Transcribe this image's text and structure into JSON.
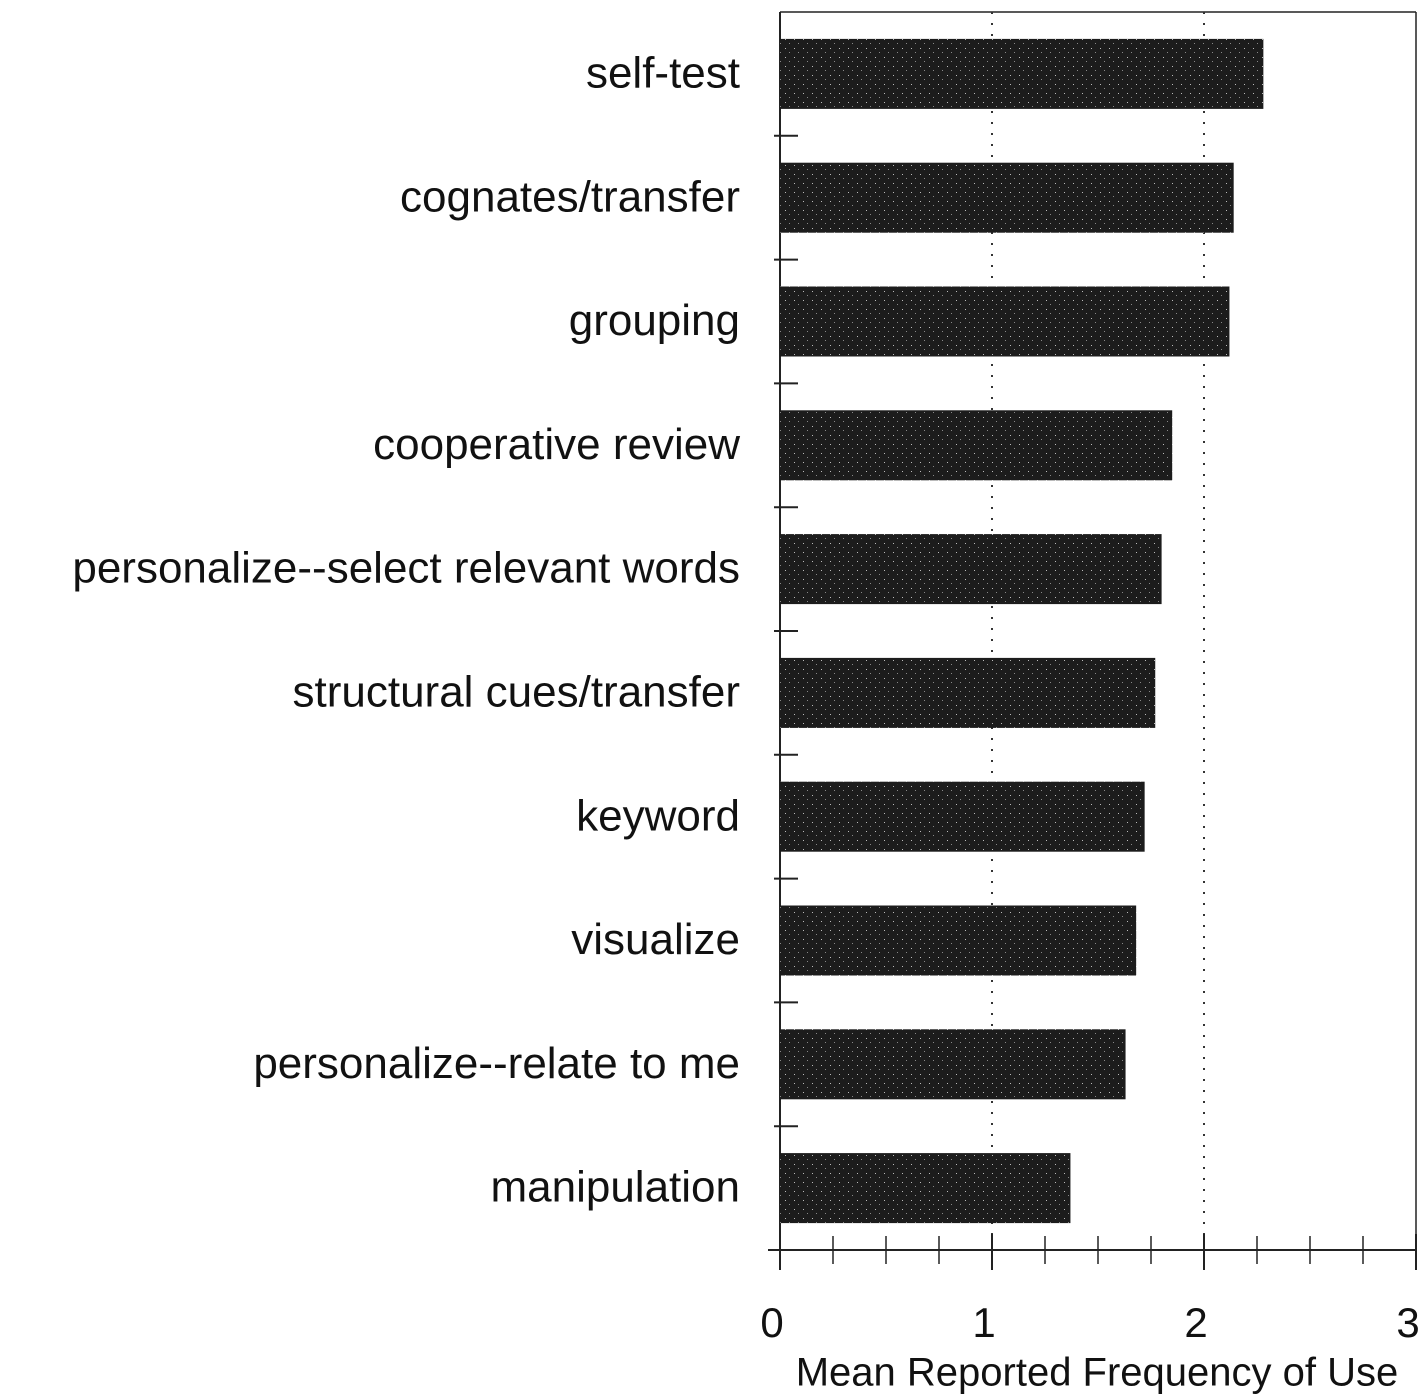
{
  "chart_data": {
    "type": "bar",
    "orientation": "horizontal",
    "x_label": "Mean Reported Frequency of Use",
    "categories": [
      "self-test",
      "cognates/transfer",
      "grouping",
      "cooperative review",
      "personalize--select relevant words",
      "structural cues/transfer",
      "keyword",
      "visualize",
      "personalize--relate to me",
      "manipulation"
    ],
    "values": [
      2.28,
      2.14,
      2.12,
      1.85,
      1.8,
      1.77,
      1.72,
      1.68,
      1.63,
      1.37
    ],
    "color": "#1c1c1c",
    "xlim": [
      0,
      3
    ],
    "xticks": [
      0,
      1,
      2,
      3
    ],
    "xticks_minor": [
      0.25,
      0.5,
      0.75,
      1.25,
      1.5,
      1.75,
      2.25,
      2.5,
      2.75
    ],
    "grid": true
  }
}
